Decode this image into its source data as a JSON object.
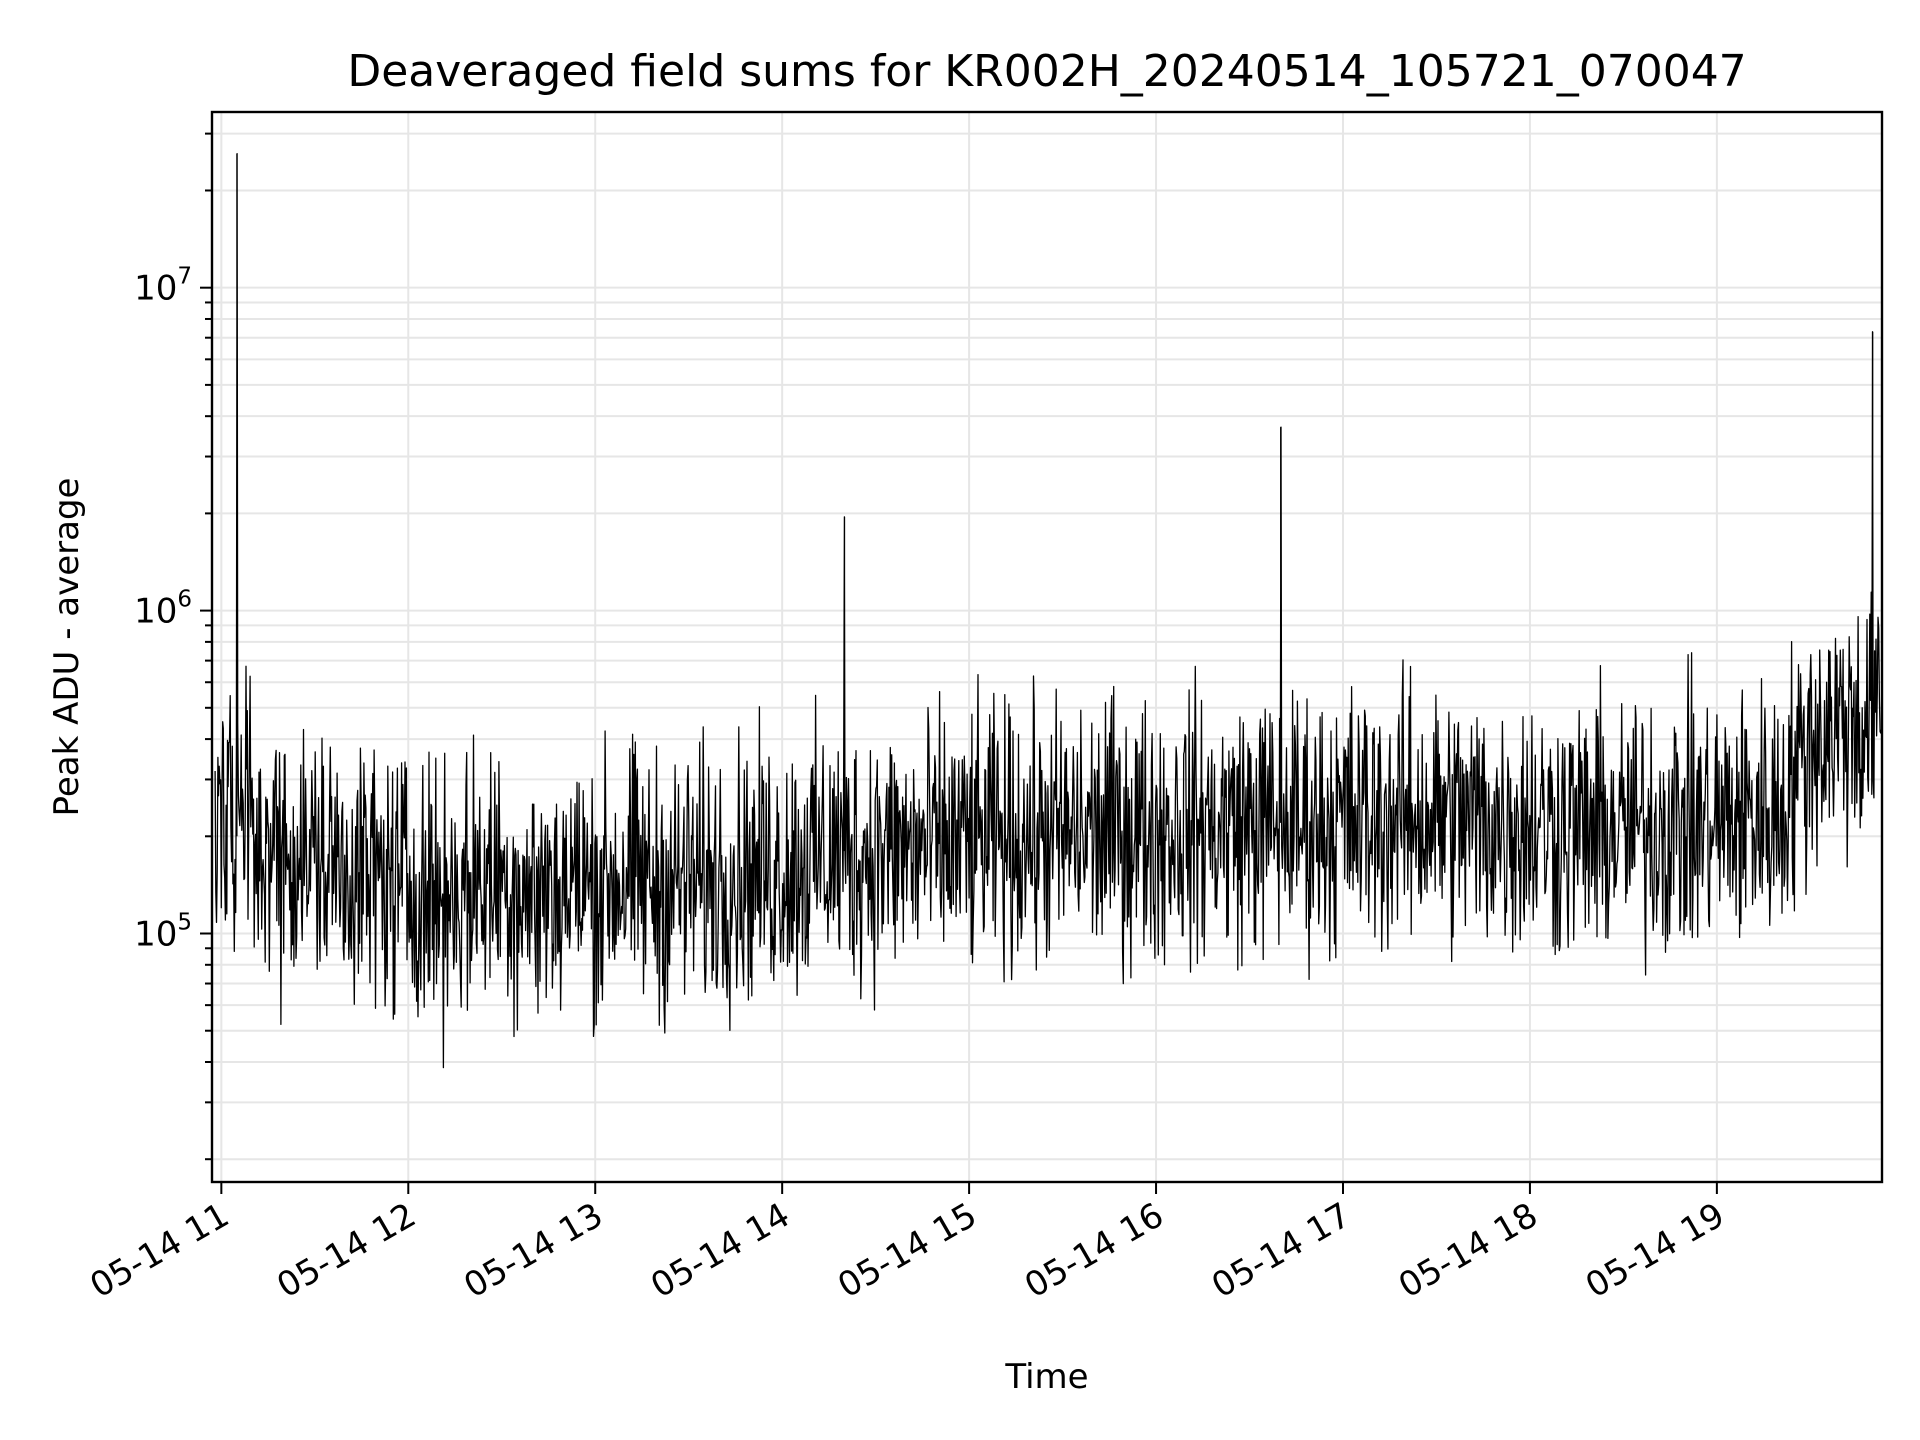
{
  "chart_data": {
    "type": "line",
    "title": "Deaveraged field sums for KR002H_20240514_105721_070047",
    "xlabel": "Time",
    "ylabel": "Peak ADU - average",
    "yscale": "log",
    "grid": true,
    "legend": "none",
    "line_color": "#000000",
    "xlim": [
      "2024-05-14 10:57",
      "2024-05-14 19:53"
    ],
    "ylim": [
      17000,
      35000000
    ],
    "x_ticks": [
      {
        "label": "05-14 11",
        "value": "2024-05-14 11:00"
      },
      {
        "label": "05-14 12",
        "value": "2024-05-14 12:00"
      },
      {
        "label": "05-14 13",
        "value": "2024-05-14 13:00"
      },
      {
        "label": "05-14 14",
        "value": "2024-05-14 14:00"
      },
      {
        "label": "05-14 15",
        "value": "2024-05-14 15:00"
      },
      {
        "label": "05-14 16",
        "value": "2024-05-14 16:00"
      },
      {
        "label": "05-14 17",
        "value": "2024-05-14 17:00"
      },
      {
        "label": "05-14 18",
        "value": "2024-05-14 18:00"
      },
      {
        "label": "05-14 19",
        "value": "2024-05-14 19:00"
      }
    ],
    "y_ticks": [
      {
        "base": "10",
        "exp": "5",
        "value": 100000
      },
      {
        "base": "10",
        "exp": "6",
        "value": 1000000
      },
      {
        "base": "10",
        "exp": "7",
        "value": 10000000
      }
    ],
    "series": [
      {
        "x": [
          "2024-05-14 10:58",
          "2024-05-14 11:05",
          "2024-05-14 11:10",
          "2024-05-14 11:20",
          "2024-05-14 11:30",
          "2024-05-14 11:40",
          "2024-05-14 11:50",
          "2024-05-14 12:00",
          "2024-05-14 12:10",
          "2024-05-14 12:20",
          "2024-05-14 12:30",
          "2024-05-14 12:40",
          "2024-05-14 12:50",
          "2024-05-14 13:00",
          "2024-05-14 13:10",
          "2024-05-14 13:20",
          "2024-05-14 13:30",
          "2024-05-14 13:40",
          "2024-05-14 13:50",
          "2024-05-14 14:00",
          "2024-05-14 14:10",
          "2024-05-14 14:20",
          "2024-05-14 14:30",
          "2024-05-14 14:40",
          "2024-05-14 14:50",
          "2024-05-14 15:00",
          "2024-05-14 15:10",
          "2024-05-14 15:20",
          "2024-05-14 15:30",
          "2024-05-14 15:40",
          "2024-05-14 15:50",
          "2024-05-14 16:00",
          "2024-05-14 16:10",
          "2024-05-14 16:20",
          "2024-05-14 16:30",
          "2024-05-14 16:40",
          "2024-05-14 16:50",
          "2024-05-14 17:00",
          "2024-05-14 17:10",
          "2024-05-14 17:20",
          "2024-05-14 17:30",
          "2024-05-14 17:40",
          "2024-05-14 17:50",
          "2024-05-14 18:00",
          "2024-05-14 18:10",
          "2024-05-14 18:20",
          "2024-05-14 18:30",
          "2024-05-14 18:40",
          "2024-05-14 18:50",
          "2024-05-14 19:00",
          "2024-05-14 19:10",
          "2024-05-14 19:20",
          "2024-05-14 19:30",
          "2024-05-14 19:40",
          "2024-05-14 19:50"
        ],
        "y": [
          250000,
          26000000,
          200000,
          180000,
          170000,
          160000,
          150000,
          140000,
          130000,
          140000,
          150000,
          130000,
          140000,
          140000,
          150000,
          140000,
          145000,
          150000,
          155000,
          160000,
          170000,
          1950000,
          180000,
          180000,
          185000,
          190000,
          195000,
          200000,
          200000,
          205000,
          210000,
          210000,
          215000,
          215000,
          220000,
          3700000,
          220000,
          225000,
          225000,
          230000,
          230000,
          225000,
          220000,
          220000,
          215000,
          210000,
          210000,
          215000,
          220000,
          220000,
          230000,
          240000,
          400000,
          450000,
          7300000
        ]
      }
    ]
  }
}
